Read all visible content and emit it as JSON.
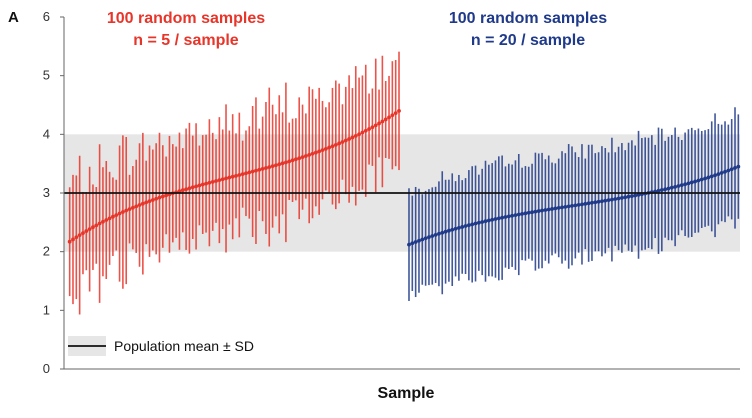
{
  "panel_label": "A",
  "chart_data": {
    "type": "scatter",
    "xlabel": "Sample",
    "ylabel": "",
    "ylim": [
      0,
      6
    ],
    "yticks": [
      0,
      1,
      2,
      3,
      4,
      5,
      6
    ],
    "grid": false,
    "population": {
      "mean": 3,
      "sd": 1
    },
    "legend": {
      "label": "Population mean ± SD",
      "position": "bottom-left"
    },
    "colors": {
      "n5": "#e8352a",
      "n20": "#1f3a8a",
      "band": "#e6e6e6",
      "mean_line": "#111111"
    },
    "series": [
      {
        "name_lines": [
          "100 random samples",
          "n = 5 / sample"
        ],
        "n_per_sample": 5,
        "count": 100,
        "mean_range": [
          2.17,
          4.4
        ],
        "sd_range": [
          0.35,
          1.5
        ]
      },
      {
        "name_lines": [
          "100 random samples",
          "n = 20 / sample"
        ],
        "n_per_sample": 20,
        "count": 100,
        "mean_range": [
          2.12,
          3.45
        ],
        "sd_range": [
          0.7,
          1.1
        ]
      }
    ]
  }
}
